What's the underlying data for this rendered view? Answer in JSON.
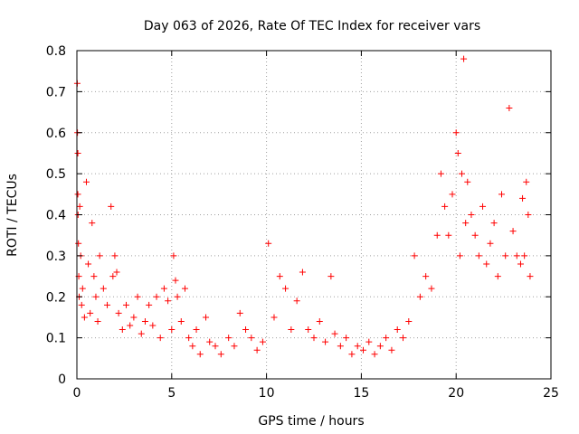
{
  "chart_data": {
    "type": "scatter",
    "title": "Day 063 of 2026, Rate Of TEC Index for receiver vars",
    "xlabel": "GPS time / hours",
    "ylabel": "ROTI / TECUs",
    "xlim": [
      0,
      25
    ],
    "ylim": [
      0,
      0.8
    ],
    "xticks": [
      "0",
      "5",
      "10",
      "15",
      "20",
      "25"
    ],
    "yticks": [
      "0",
      "0.1",
      "0.2",
      "0.3",
      "0.4",
      "0.5",
      "0.6",
      "0.7",
      "0.8"
    ],
    "grid": true,
    "marker": "+",
    "color": "#ff0000",
    "series": [
      {
        "x": [
          0.02,
          0.03,
          0.05,
          0.05,
          0.06,
          0.08,
          0.1,
          0.12,
          0.15,
          0.2,
          0.25,
          0.3,
          0.4,
          0.5,
          0.6,
          0.7,
          0.8,
          0.9,
          1.0,
          1.1,
          1.2,
          1.4,
          1.6,
          1.8,
          1.9,
          2.0,
          2.1,
          2.2,
          2.4,
          2.6,
          2.8,
          3.0,
          3.2,
          3.4,
          3.6,
          3.8,
          4.0,
          4.2,
          4.4,
          4.6,
          4.8,
          5.0,
          5.1,
          5.2,
          5.3,
          5.5,
          5.7,
          5.9,
          6.1,
          6.3,
          6.5,
          6.8,
          7.0,
          7.3,
          7.6,
          8.0,
          8.3,
          8.6,
          8.9,
          9.2,
          9.5,
          9.8,
          10.1,
          10.4,
          10.7,
          11.0,
          11.3,
          11.6,
          11.9,
          12.2,
          12.5,
          12.8,
          13.1,
          13.4,
          13.6,
          13.9,
          14.2,
          14.5,
          14.8,
          15.1,
          15.4,
          15.7,
          16.0,
          16.3,
          16.6,
          16.9,
          17.2,
          17.5,
          17.8,
          18.1,
          18.4,
          18.7,
          19.0,
          19.2,
          19.4,
          19.6,
          19.8,
          20.0,
          20.1,
          20.2,
          20.3,
          20.4,
          20.5,
          20.6,
          20.8,
          21.0,
          21.2,
          21.4,
          21.6,
          21.8,
          22.0,
          22.2,
          22.4,
          22.6,
          22.8,
          23.0,
          23.2,
          23.4,
          23.5,
          23.6,
          23.7,
          23.8,
          23.9
        ],
        "y": [
          0.72,
          0.6,
          0.45,
          0.55,
          0.4,
          0.33,
          0.25,
          0.2,
          0.42,
          0.3,
          0.18,
          0.22,
          0.15,
          0.48,
          0.28,
          0.16,
          0.38,
          0.25,
          0.2,
          0.14,
          0.3,
          0.22,
          0.18,
          0.42,
          0.25,
          0.3,
          0.26,
          0.16,
          0.12,
          0.18,
          0.13,
          0.15,
          0.2,
          0.11,
          0.14,
          0.18,
          0.13,
          0.2,
          0.1,
          0.22,
          0.19,
          0.12,
          0.3,
          0.24,
          0.2,
          0.14,
          0.22,
          0.1,
          0.08,
          0.12,
          0.06,
          0.15,
          0.09,
          0.08,
          0.06,
          0.1,
          0.08,
          0.16,
          0.12,
          0.1,
          0.07,
          0.09,
          0.33,
          0.15,
          0.25,
          0.22,
          0.12,
          0.19,
          0.26,
          0.12,
          0.1,
          0.14,
          0.09,
          0.25,
          0.11,
          0.08,
          0.1,
          0.06,
          0.08,
          0.07,
          0.09,
          0.06,
          0.08,
          0.1,
          0.07,
          0.12,
          0.1,
          0.14,
          0.3,
          0.2,
          0.25,
          0.22,
          0.35,
          0.5,
          0.42,
          0.35,
          0.45,
          0.6,
          0.55,
          0.3,
          0.5,
          0.78,
          0.38,
          0.48,
          0.4,
          0.35,
          0.3,
          0.42,
          0.28,
          0.33,
          0.38,
          0.25,
          0.45,
          0.3,
          0.66,
          0.36,
          0.3,
          0.28,
          0.44,
          0.3,
          0.48,
          0.4,
          0.25
        ]
      }
    ]
  }
}
